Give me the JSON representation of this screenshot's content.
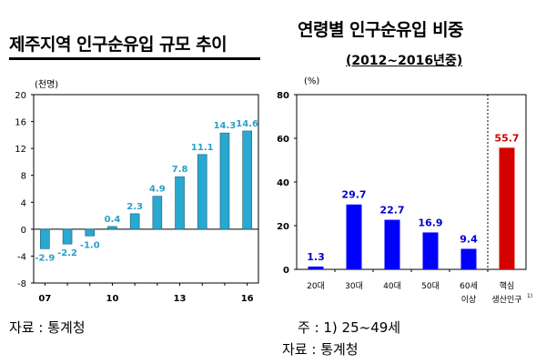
{
  "chart_data": [
    {
      "type": "bar",
      "title": "제주지역 인구순유입 규모 추이",
      "unit": "(천명)",
      "ylim": [
        -8,
        20
      ],
      "yticks": [
        -8,
        -4,
        0,
        4,
        8,
        12,
        16,
        20
      ],
      "x": [
        2007,
        2008,
        2009,
        2010,
        2011,
        2012,
        2013,
        2014,
        2015,
        2016
      ],
      "xtick_labels": [
        {
          "x": 2007,
          "label": "07"
        },
        {
          "x": 2010,
          "label": "10"
        },
        {
          "x": 2013,
          "label": "13"
        },
        {
          "x": 2016,
          "label": "16"
        }
      ],
      "values": [
        -2.9,
        -2.2,
        -1.0,
        0.4,
        2.3,
        4.9,
        7.8,
        11.1,
        14.3,
        14.6
      ],
      "data_labels": [
        "-2.9",
        "-2.2",
        "-1.0",
        "0.4",
        "2.3",
        "4.9",
        "7.8",
        "11.1",
        "14.3",
        "14.6"
      ],
      "color": "#29a8d0",
      "label_color": "#2a9fc8",
      "grid": false
    },
    {
      "type": "bar",
      "title": "연령별 인구순유입 비중",
      "subtitle": "(2012~2016년중)",
      "unit": "(%)",
      "ylim": [
        0,
        80
      ],
      "yticks": [
        0,
        20,
        40,
        60,
        80
      ],
      "categories": [
        "20대",
        "30대",
        "40대",
        "50대",
        "60세 이상",
        "핵심 생산인구"
      ],
      "category_lines": [
        [
          "20대"
        ],
        [
          "30대"
        ],
        [
          "40대"
        ],
        [
          "50대"
        ],
        [
          "60세",
          "이상"
        ],
        [
          "핵심",
          "생산인구"
        ]
      ],
      "footnote_marker": "1)",
      "values": [
        1.3,
        29.7,
        22.7,
        16.9,
        9.4,
        55.7
      ],
      "data_labels": [
        "1.3",
        "29.7",
        "22.7",
        "16.9",
        "9.4",
        "55.7"
      ],
      "colors": [
        "#0000ff",
        "#0000ff",
        "#0000ff",
        "#0000ff",
        "#0000ff",
        "#d40000"
      ],
      "label_colors": [
        "#0000cc",
        "#0000cc",
        "#0000cc",
        "#0000cc",
        "#0000cc",
        "#cc0000"
      ],
      "separator_after_index": 4,
      "grid": false
    }
  ],
  "footer": {
    "left_source": "자료 : 통계청",
    "note": "주 : 1) 25~49세",
    "right_source": "자료 : 통계청"
  }
}
